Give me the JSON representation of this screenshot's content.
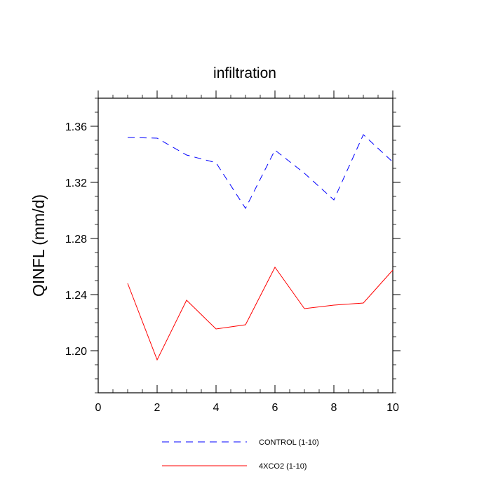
{
  "chart_data": {
    "type": "line",
    "title": "infiltration",
    "xlabel": "",
    "ylabel": "QINFL  (mm/d)",
    "xlim": [
      0,
      10
    ],
    "ylim": [
      1.17,
      1.38
    ],
    "x_ticks": [
      0,
      2,
      4,
      6,
      8,
      10
    ],
    "y_ticks": [
      1.2,
      1.24,
      1.28,
      1.32,
      1.36
    ],
    "y_tick_labels": [
      "1.20",
      "1.24",
      "1.28",
      "1.32",
      "1.36"
    ],
    "x": [
      1,
      2,
      3,
      4,
      5,
      6,
      7,
      8,
      9,
      10
    ],
    "series": [
      {
        "name": "CONTROL (1-10)",
        "color": "#0000ff",
        "dash": "dashed",
        "values": [
          1.352,
          1.3515,
          1.3395,
          1.334,
          1.3015,
          1.343,
          1.3265,
          1.3075,
          1.354,
          1.3345
        ]
      },
      {
        "name": "4XCO2 (1-10)",
        "color": "#ff0000",
        "dash": "solid",
        "values": [
          1.248,
          1.1935,
          1.236,
          1.2155,
          1.2185,
          1.2595,
          1.23,
          1.2325,
          1.234,
          1.2575
        ]
      }
    ],
    "grid": false,
    "legend_position": "bottom"
  }
}
